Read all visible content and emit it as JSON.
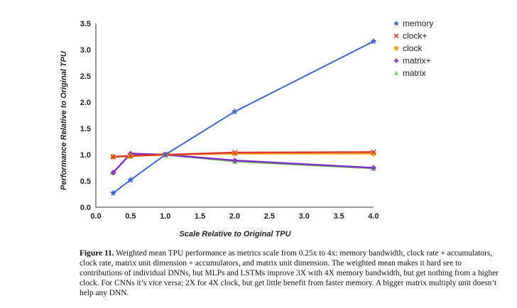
{
  "chart_data": {
    "type": "line",
    "title": "",
    "xlabel": "Scale Relative to Original TPU",
    "ylabel": "Performance Relative to Original TPU",
    "xlim": [
      0.0,
      4.0
    ],
    "ylim": [
      0.0,
      3.5
    ],
    "xticks": [
      0.0,
      0.5,
      1.0,
      1.5,
      2.0,
      2.5,
      3.0,
      3.5,
      4.0
    ],
    "xtick_labels": [
      "0.0",
      "0.5",
      "1.0",
      "1.5",
      "2.0",
      "2.5",
      "3.0",
      "3.5",
      "4.0"
    ],
    "yticks": [
      0.0,
      0.5,
      1.0,
      1.5,
      2.0,
      2.5,
      3.0,
      3.5
    ],
    "ytick_labels": [
      "0.0",
      "0.5",
      "1.0",
      "1.5",
      "2.0",
      "2.5",
      "3.0",
      "3.5"
    ],
    "grid": false,
    "legend_position": "right",
    "x": [
      0.25,
      0.5,
      1.0,
      2.0,
      4.0
    ],
    "series": [
      {
        "name": "memory",
        "values": [
          0.27,
          0.52,
          1.0,
          1.82,
          3.16
        ],
        "color": "#3f64c8",
        "marker": "star"
      },
      {
        "name": "clock+",
        "values": [
          0.96,
          0.98,
          1.0,
          1.04,
          1.05
        ],
        "color": "#d93a2b",
        "marker": "x"
      },
      {
        "name": "clock",
        "values": [
          0.96,
          0.97,
          1.0,
          1.02,
          1.02
        ],
        "color": "#f5a623",
        "marker": "circle"
      },
      {
        "name": "matrix+",
        "values": [
          0.66,
          1.02,
          1.0,
          0.89,
          0.75
        ],
        "color": "#7b2fc2",
        "marker": "diamond"
      },
      {
        "name": "matrix",
        "values": [
          0.66,
          1.02,
          1.0,
          0.87,
          0.74
        ],
        "color": "#7cbf6b",
        "marker": "triangle"
      }
    ]
  },
  "caption": {
    "label": "Figure 11.",
    "text": " Weighted mean TPU performance as metrics scale from 0.25x to 4x: memory bandwidth, clock rate + accumulators, clock rate, matrix unit dimension + accumulators, and matrix unit dimension. The weighted mean makes it hard see to contributions of individual DNNs, but  MLPs and LSTMs improve 3X with 4X memory bandwidth, but get nothing from a higher clock. For CNNs it’s vice versa; 2X for 4X clock, but get little benefit from faster memory. A bigger matrix multiply unit doesn’t help any DNN."
  }
}
